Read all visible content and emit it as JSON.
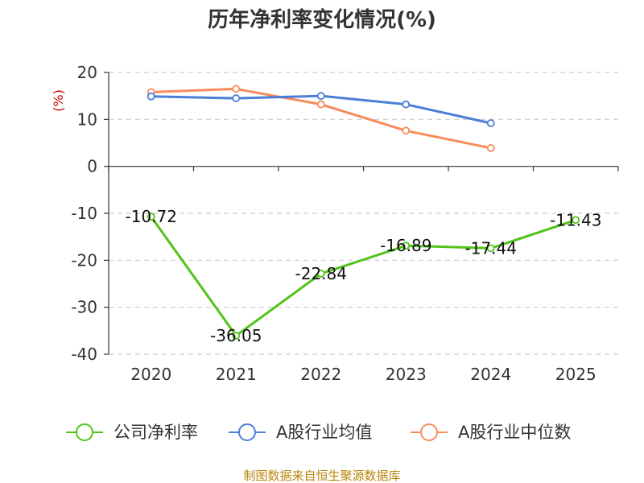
{
  "chart_data": {
    "type": "line",
    "title": "历年净利率变化情况(%)",
    "ylabel": "(%)",
    "xlabel": "",
    "ylim": [
      -40,
      20
    ],
    "yticks": [
      20,
      10,
      0,
      -10,
      -20,
      -30,
      -40
    ],
    "categories": [
      "2020",
      "2021",
      "2022",
      "2023",
      "2024",
      "2025"
    ],
    "grid": true,
    "legend_position": "bottom",
    "series": [
      {
        "name": "公司净利率",
        "color": "#52c41a",
        "values": [
          -10.72,
          -36.05,
          -22.84,
          -16.89,
          -17.44,
          -11.43
        ],
        "labels": [
          "-10.72",
          "-36.05",
          "-22.84",
          "-16.89",
          "-17.44",
          "-11.43"
        ]
      },
      {
        "name": "A股行业均值",
        "color": "#4a7fd8",
        "values": [
          14.9,
          14.5,
          15.0,
          13.2,
          9.2,
          null
        ]
      },
      {
        "name": "A股行业中位数",
        "color": "#f78c5a",
        "values": [
          15.8,
          16.5,
          13.2,
          7.6,
          3.9,
          null
        ]
      }
    ],
    "source": "制图数据来自恒生聚源数据库"
  }
}
